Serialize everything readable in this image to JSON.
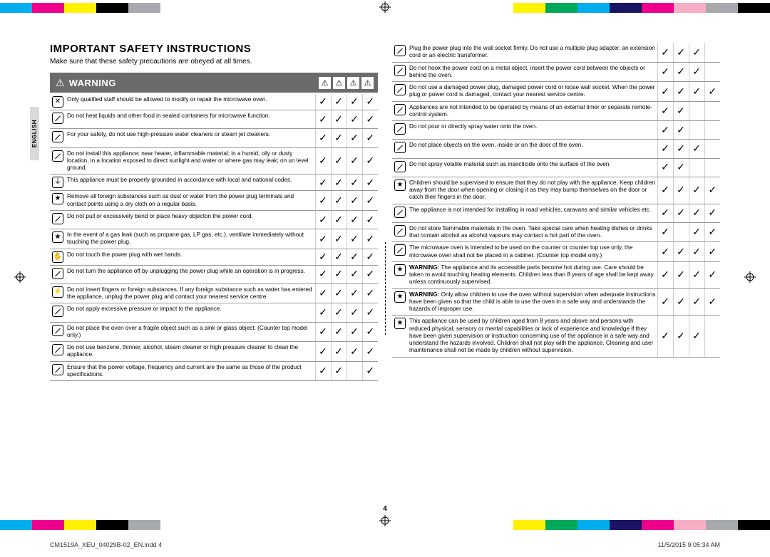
{
  "colorbars": {
    "left": [
      "#00aeef",
      "#ec008c",
      "#fff200",
      "#000000",
      "#a7a9ac",
      "#ffffff",
      "#ffffff",
      "#ffffff",
      "#ffffff",
      "#ffffff",
      "#ffffff",
      "#ffffff"
    ],
    "right": [
      "#ffffff",
      "#ffffff",
      "#ffffff",
      "#ffffff",
      "#fff200",
      "#00a859",
      "#00aeef",
      "#1b1464",
      "#ec008c",
      "#f7adc4",
      "#a7a9ac",
      "#000000"
    ]
  },
  "language_tab": "ENGLISH",
  "heading": "IMPORTANT SAFETY INSTRUCTIONS",
  "subhead": "Make sure that these safety precautions are obeyed at all times.",
  "warning_label": "WARNING",
  "header_icons": [
    "⚠",
    "⚠",
    "⚠",
    "⚠"
  ],
  "check_glyph": "✓",
  "left_rows": [
    {
      "icon": "cross",
      "text": "Only qualified staff should be allowed to modify or repair the microwave oven.",
      "c": [
        1,
        1,
        1,
        1
      ]
    },
    {
      "icon": "slash",
      "text": "Do not heat liquids and other food in sealed containers for microwave function.",
      "c": [
        1,
        1,
        1,
        1
      ]
    },
    {
      "icon": "slash",
      "text": "For your safety, do not use high-pressure water cleaners or steam jet cleaners.",
      "c": [
        1,
        1,
        1,
        1
      ]
    },
    {
      "icon": "slash",
      "text": "Do not install this appliance; near heater, inflammable material; in a humid, oily or dusty location, in a location exposed to direct sunlight and water or where gas may leak; on un level ground.",
      "c": [
        1,
        1,
        1,
        1
      ]
    },
    {
      "icon": "ground",
      "text": "This appliance must be properly grounded in accordance with local and national codes.",
      "c": [
        1,
        1,
        1,
        1
      ]
    },
    {
      "icon": "star",
      "text": "Remove all foreign substances such as dust or water from the power plug terminals and contact points using a dry cloth on a regular basis.",
      "c": [
        1,
        1,
        1,
        1
      ]
    },
    {
      "icon": "slash",
      "text": "Do not pull or excessively bend or place heavy objecton the power cord.",
      "c": [
        1,
        1,
        1,
        1
      ]
    },
    {
      "icon": "star",
      "text": "In the event of a gas leak (such as propane gas, LP gas, etc.), ventilate immediately without touching the power plug.",
      "c": [
        1,
        1,
        1,
        1
      ]
    },
    {
      "icon": "hand",
      "text": "Do not touch the power plug with wet hands.",
      "c": [
        1,
        1,
        1,
        1
      ]
    },
    {
      "icon": "slash",
      "text": "Do not turn the appliance off by unplugging the power plug while an operation is in progress.",
      "c": [
        1,
        1,
        1,
        1
      ]
    },
    {
      "icon": "plug",
      "text": "Do not insert fingers or foreign substances, If any foreign substance such as water has entered the appliance, unplug the power plug and contact your nearest service centre.",
      "c": [
        1,
        1,
        1,
        1
      ]
    },
    {
      "icon": "slash",
      "text": "Do not apply excessive pressure or impact to the appliance.",
      "c": [
        1,
        1,
        1,
        1
      ]
    },
    {
      "icon": "slash",
      "text": "Do not place the oven over a fragile object such as a sink or glass object. (Counter top model only.)",
      "c": [
        1,
        1,
        1,
        1
      ]
    },
    {
      "icon": "slash",
      "text": "Do not use benzene, thinner, alcohol, steam cleaner or high pressure cleaner to clean the appliance.",
      "c": [
        1,
        1,
        1,
        1
      ]
    },
    {
      "icon": "slash",
      "text": "Ensure that the power voltage, frequency and current are the same as those of the product specifications.",
      "c": [
        1,
        1,
        0,
        1
      ]
    }
  ],
  "right_rows": [
    {
      "icon": "slash",
      "text": "Plug the power plug into the wall socket firmly. Do not use a multiple plug adapter, an extension cord or an electric transformer.",
      "c": [
        1,
        1,
        1,
        0
      ]
    },
    {
      "icon": "slash",
      "text": "Do not hook the power cord on a metal object, insert the power cord between the objects or behind the oven.",
      "c": [
        1,
        1,
        1,
        0
      ]
    },
    {
      "icon": "slash",
      "text": "Do not use a damaged power plug, damaged power cord or loose wall socket. When the power plug or power cord is damaged, contact your nearest service centre.",
      "c": [
        1,
        1,
        1,
        1
      ]
    },
    {
      "icon": "slash",
      "text": "Appliances are not intended to be operated by means of an external timer or separate remote-control system.",
      "c": [
        1,
        1,
        0,
        0
      ]
    },
    {
      "icon": "slash",
      "text": "Do not pour or directly spray water onto the oven.",
      "c": [
        1,
        1,
        0,
        0
      ]
    },
    {
      "icon": "slash",
      "text": "Do not place objects on the oven, inside or on the door of the oven.",
      "c": [
        1,
        1,
        1,
        0
      ]
    },
    {
      "icon": "slash",
      "text": "Do not spray volatile material such as insecticide onto the surface of the oven.",
      "c": [
        1,
        1,
        0,
        0
      ]
    },
    {
      "icon": "star",
      "text": "Children should be supervised to ensure that they do not play with the appliance. Keep children away from the door when opening or closing it as they may bump themselves on the door or catch their fingers in the door.",
      "c": [
        1,
        1,
        1,
        1
      ]
    },
    {
      "icon": "slash",
      "text": "The appliance is not intended for installing in road vehicles, caravans and similar vehicles etc.",
      "c": [
        1,
        1,
        1,
        1
      ]
    },
    {
      "icon": "slash",
      "text": "Do not store flammable materials in the oven. Take special care when heating dishes or drinks that contain alcohol as alcohol vapours may contact a hot part of the oven.",
      "c": [
        1,
        0,
        1,
        1
      ]
    },
    {
      "icon": "slash",
      "text": "The microwave oven is intended to be used on the counter or counter top use only, the microwave oven shall not be placed in a cabinet. (Counter top model only.)",
      "c": [
        1,
        1,
        1,
        1
      ]
    },
    {
      "icon": "star",
      "bold": "WARNING:",
      "text": " The appliance and its accessible parts become hot during use. Care should be taken to avoid touching heating elements. Children less than 8 years of age shall be kept away unless continuously supervised.",
      "c": [
        1,
        1,
        1,
        1
      ]
    },
    {
      "icon": "star",
      "bold": "WARNING:",
      "text": " Only allow children to use the oven without supervision when adequate instructions have been given so that the child is able to use the oven in a safe way and understands the hazards of improper use.",
      "c": [
        1,
        1,
        1,
        1
      ]
    },
    {
      "icon": "star",
      "text": "This appliance can be used by children aged from 8 years and above and persons with reduced physical, sensory or mental capabilities or lack of experience and knowledge if they have been given supervision or instruction concerning use of the appliance in a safe way and understand the hazards involved. Children shall not play with the appliance. Cleaning and user maintenance shall not be made by children without supervision.",
      "c": [
        1,
        1,
        1,
        0
      ]
    }
  ],
  "page_number": "4",
  "footer_left": "CM1519A_XEU_04029B-02_EN.indd   4",
  "footer_right": "11/5/2015   9:05:34 AM"
}
